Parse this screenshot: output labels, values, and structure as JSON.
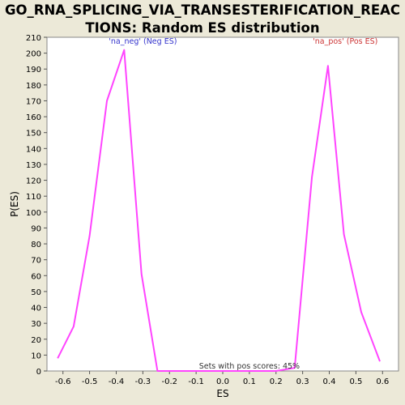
{
  "chart_data": {
    "type": "line",
    "title_lines": [
      "GO_RNA_SPLICING_VIA_TRANSESTERIFICATION_REAC",
      "TIONS: Random ES distribution"
    ],
    "xlabel": "ES",
    "ylabel": "P(ES)",
    "xlim": [
      -0.66,
      0.66
    ],
    "ylim": [
      0,
      210
    ],
    "x_ticks": [
      -0.6,
      -0.5,
      -0.4,
      -0.3,
      -0.2,
      -0.1,
      0.0,
      0.1,
      0.2,
      0.3,
      0.4,
      0.5,
      0.6
    ],
    "x_tick_labels": [
      "-0.6",
      "-0.5",
      "-0.4",
      "-0.3",
      "-0.2",
      "-0.1",
      "0.0",
      "0.1",
      "0.2",
      "0.3",
      "0.4",
      "0.5",
      "0.6"
    ],
    "y_ticks": [
      0,
      10,
      20,
      30,
      40,
      50,
      60,
      70,
      80,
      90,
      100,
      110,
      120,
      130,
      140,
      150,
      160,
      170,
      180,
      190,
      200,
      210
    ],
    "grid": false,
    "series": [
      {
        "color": "#ff44ff",
        "x": [
          -0.62,
          -0.56,
          -0.5,
          -0.435,
          -0.37,
          -0.305,
          -0.245,
          -0.18,
          -0.12,
          -0.06,
          0.0,
          0.06,
          0.12,
          0.2,
          0.27,
          0.335,
          0.395,
          0.455,
          0.52,
          0.59
        ],
        "y": [
          8,
          28,
          85,
          170,
          202,
          61,
          0,
          0,
          0,
          0,
          0,
          0,
          0,
          0,
          2,
          122,
          192,
          86,
          37,
          6
        ]
      }
    ],
    "annotations": [
      {
        "text": "'na_neg' (Neg ES)",
        "x": -0.3,
        "y": 206,
        "color": "#3333cc"
      },
      {
        "text": "'na_pos' (Pos ES)",
        "x": 0.46,
        "y": 206,
        "color": "#cc3333"
      },
      {
        "text": "Sets with pos scores: 45%",
        "x": 0.1,
        "y": 1.5,
        "color": "#333333"
      }
    ]
  }
}
